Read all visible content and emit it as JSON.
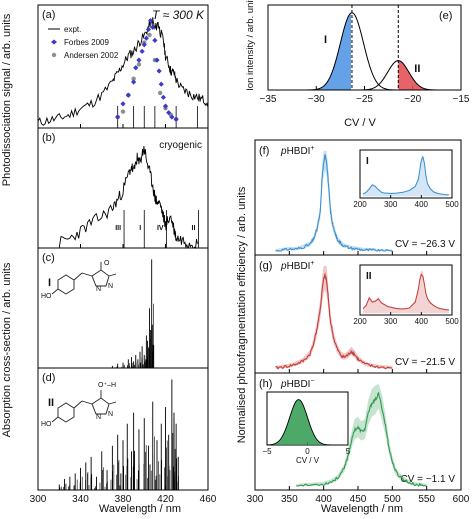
{
  "figure": {
    "left_ylabel_top": "Photodissociation signal / arb. units",
    "left_ylabel_bottom": "Absorption cross-section / arb. units",
    "left_xlabel": "Wavelength / nm",
    "right_ylabel_top": "Ion intensity / arb. units",
    "right_xlabel_top": "CV / V",
    "right_ylabel_bottom": "Normalised photofragmentation efficiency / arb. units",
    "right_xlabel_bottom": "Wavelength / nm"
  },
  "chart_data": [
    {
      "id": "a",
      "type": "line",
      "panel_label": "(a)",
      "temperature": "T ≈ 300 K",
      "xlim": [
        300,
        460
      ],
      "x_ticks": [
        300,
        340,
        380,
        420,
        460
      ],
      "legend": [
        "expt.",
        "Forbes 2009",
        "Andersen 2002"
      ],
      "series": [
        {
          "name": "expt.",
          "color": "#000000",
          "x": [
            300,
            310,
            320,
            330,
            340,
            350,
            360,
            370,
            375,
            380,
            385,
            390,
            395,
            400,
            405,
            408,
            410,
            413,
            415,
            418,
            420,
            423,
            425,
            428,
            430,
            435,
            440,
            445,
            450,
            455,
            460
          ],
          "y": [
            0.05,
            0.07,
            0.09,
            0.12,
            0.18,
            0.22,
            0.3,
            0.42,
            0.5,
            0.58,
            0.66,
            0.7,
            0.78,
            0.84,
            0.95,
            0.98,
            0.9,
            0.96,
            0.88,
            0.8,
            0.66,
            0.58,
            0.52,
            0.5,
            0.44,
            0.36,
            0.33,
            0.3,
            0.28,
            0.26,
            0.24
          ]
        },
        {
          "name": "Forbes 2009",
          "color": "#3a3acc",
          "x": [
            375,
            380,
            385,
            390,
            392,
            395,
            398,
            400,
            402,
            404,
            406,
            408,
            410,
            412,
            414,
            416,
            418,
            420,
            423,
            426,
            430
          ],
          "y": [
            0.1,
            0.22,
            0.3,
            0.42,
            0.55,
            0.62,
            0.7,
            0.76,
            0.82,
            0.9,
            0.98,
            0.92,
            0.8,
            0.62,
            0.52,
            0.4,
            0.28,
            0.2,
            0.14,
            0.1,
            0.08
          ]
        },
        {
          "name": "Andersen 2002",
          "color": "#8e8e8e",
          "x": [
            375,
            380,
            385,
            390,
            395,
            400,
            405,
            410,
            415,
            420,
            425,
            430
          ],
          "y": [
            0.1,
            0.15,
            0.3,
            0.45,
            0.58,
            0.78,
            0.85,
            0.62,
            0.32,
            0.18,
            0.12,
            0.08
          ]
        }
      ],
      "sticks_x": [
        375,
        390,
        400,
        410,
        430,
        450
      ]
    },
    {
      "id": "b",
      "type": "line",
      "panel_label": "(b)",
      "condition": "cryogenic",
      "xlim": [
        300,
        460
      ],
      "series": [
        {
          "name": "",
          "color": "#000000",
          "x": [
            320,
            330,
            340,
            350,
            360,
            370,
            375,
            380,
            385,
            388,
            390,
            393,
            395,
            398,
            400,
            402,
            405,
            408,
            410,
            412,
            415,
            418,
            420,
            422,
            425,
            428,
            430,
            435,
            440,
            445,
            450
          ],
          "y": [
            0.05,
            0.09,
            0.16,
            0.24,
            0.3,
            0.38,
            0.46,
            0.55,
            0.7,
            0.78,
            0.72,
            0.86,
            0.8,
            0.9,
            0.95,
            0.85,
            0.72,
            0.6,
            0.48,
            0.44,
            0.42,
            0.3,
            0.22,
            0.26,
            0.3,
            0.18,
            0.1,
            0.08,
            0.06,
            0.05,
            0.04
          ]
        }
      ],
      "sticks_x": [
        381,
        400,
        421,
        451
      ],
      "band_labels": [
        "III",
        "I",
        "IV",
        "II"
      ]
    },
    {
      "id": "c",
      "type": "bar",
      "panel_label": "(c)",
      "label": "I",
      "xlim": [
        300,
        460
      ],
      "x": [
        370,
        375,
        380,
        385,
        388,
        390,
        392,
        394,
        396,
        398,
        400,
        402,
        403,
        405,
        406,
        407,
        408
      ],
      "values": [
        0.02,
        0.04,
        0.05,
        0.08,
        0.1,
        0.06,
        0.12,
        0.08,
        0.15,
        0.2,
        0.12,
        0.3,
        0.25,
        0.55,
        0.35,
        1.0,
        0.4
      ]
    },
    {
      "id": "d",
      "type": "bar",
      "panel_label": "(d)",
      "label": "II",
      "xlim": [
        300,
        460
      ],
      "x": [
        320,
        325,
        330,
        335,
        340,
        345,
        350,
        355,
        360,
        365,
        370,
        375,
        378,
        380,
        384,
        388,
        390,
        395,
        400,
        404,
        408,
        412,
        416,
        420,
        423,
        426,
        428,
        430,
        432
      ],
      "values": [
        0.05,
        0.1,
        0.12,
        0.15,
        0.2,
        0.25,
        0.3,
        0.12,
        0.35,
        0.18,
        0.4,
        0.5,
        0.15,
        0.45,
        0.6,
        0.35,
        0.7,
        0.55,
        0.65,
        0.4,
        0.8,
        0.45,
        0.6,
        0.75,
        0.5,
        1.0,
        0.7,
        0.6,
        0.3
      ]
    },
    {
      "id": "e",
      "type": "area",
      "panel_label": "(e)",
      "xlabel": "CV / V",
      "ylabel": "Ion intensity / arb. units",
      "xlim": [
        -35,
        -15
      ],
      "x_ticks": [
        -35,
        -30,
        -25,
        -20,
        -15
      ],
      "peaks": [
        {
          "name": "I",
          "center": -26.3,
          "sigma": 1.2,
          "height": 1.0,
          "color": "#4a90e2"
        },
        {
          "name": "II",
          "center": -21.5,
          "sigma": 1.1,
          "height": 0.38,
          "color": "#e0494e"
        }
      ],
      "dashed_lines": [
        -26.3,
        -21.5
      ]
    },
    {
      "id": "f",
      "type": "line",
      "panel_label": "(f)",
      "title": "pHBDI",
      "title_sup": "+",
      "cv_text": "CV = −26.3 V",
      "xlim": [
        300,
        600
      ],
      "color": "#3a8fd0",
      "x": [
        330,
        340,
        350,
        360,
        370,
        380,
        385,
        390,
        395,
        398,
        400,
        402,
        404,
        406,
        408,
        410,
        412,
        415,
        418,
        420,
        425,
        430,
        440,
        450,
        460,
        470,
        480,
        490,
        500
      ],
      "y": [
        0.0,
        0.01,
        0.02,
        0.02,
        0.04,
        0.07,
        0.12,
        0.22,
        0.4,
        0.8,
        0.92,
        1.0,
        0.95,
        0.8,
        0.6,
        0.42,
        0.32,
        0.22,
        0.16,
        0.12,
        0.08,
        0.05,
        0.03,
        0.02,
        0.01,
        0.01,
        0.0,
        0.0,
        0.0
      ],
      "inset": {
        "label": "I",
        "xlim": [
          200,
          500
        ],
        "x_ticks": [
          200,
          300,
          400,
          500
        ],
        "x": [
          210,
          220,
          230,
          240,
          250,
          260,
          270,
          280,
          290,
          300,
          320,
          340,
          360,
          380,
          390,
          400,
          405,
          410,
          415,
          420,
          430,
          440,
          450,
          460,
          470,
          480,
          490
        ],
        "y": [
          0.1,
          0.14,
          0.22,
          0.32,
          0.28,
          0.2,
          0.14,
          0.12,
          0.12,
          0.11,
          0.12,
          0.14,
          0.18,
          0.28,
          0.45,
          0.92,
          1.0,
          0.85,
          0.55,
          0.35,
          0.22,
          0.15,
          0.12,
          0.1,
          0.09,
          0.08,
          0.08
        ]
      }
    },
    {
      "id": "g",
      "type": "line",
      "panel_label": "(g)",
      "title": "pHBDI",
      "title_sup": "+",
      "cv_text": "CV = −21.5 V",
      "xlim": [
        300,
        600
      ],
      "color": "#c43a3a",
      "x": [
        330,
        340,
        350,
        360,
        370,
        380,
        385,
        390,
        395,
        398,
        400,
        402,
        404,
        406,
        408,
        410,
        415,
        420,
        425,
        430,
        435,
        440,
        445,
        450,
        460,
        470,
        480,
        500
      ],
      "y": [
        0.01,
        0.02,
        0.03,
        0.05,
        0.08,
        0.15,
        0.25,
        0.4,
        0.6,
        0.82,
        0.92,
        0.96,
        0.9,
        0.78,
        0.62,
        0.48,
        0.3,
        0.2,
        0.14,
        0.12,
        0.14,
        0.18,
        0.15,
        0.1,
        0.05,
        0.03,
        0.02,
        0.01
      ],
      "inset": {
        "label": "II",
        "xlim": [
          200,
          500
        ],
        "x_ticks": [
          200,
          300,
          400,
          500
        ],
        "x": [
          210,
          220,
          230,
          240,
          250,
          260,
          270,
          280,
          290,
          300,
          320,
          340,
          360,
          380,
          390,
          395,
          400,
          405,
          410,
          415,
          420,
          430,
          440,
          450,
          460,
          470,
          480,
          490
        ],
        "y": [
          0.15,
          0.22,
          0.4,
          0.3,
          0.32,
          0.38,
          0.28,
          0.24,
          0.2,
          0.18,
          0.15,
          0.14,
          0.16,
          0.3,
          0.6,
          0.82,
          0.95,
          0.9,
          0.72,
          0.5,
          0.38,
          0.28,
          0.22,
          0.18,
          0.15,
          0.14,
          0.12,
          0.12
        ]
      }
    },
    {
      "id": "h",
      "type": "line",
      "panel_label": "(h)",
      "title": "pHBDI",
      "title_sup": "−",
      "cv_text": "CV = −1.1 V",
      "xlim": [
        300,
        600
      ],
      "color": "#2e9a4e",
      "x_ticks": [
        300,
        350,
        400,
        450,
        500,
        550,
        600
      ],
      "x": [
        360,
        380,
        400,
        410,
        420,
        430,
        435,
        440,
        445,
        450,
        455,
        460,
        465,
        470,
        475,
        480,
        485,
        490,
        495,
        500,
        505,
        510,
        520,
        530,
        540,
        550
      ],
      "y": [
        0.0,
        0.01,
        0.02,
        0.04,
        0.08,
        0.18,
        0.3,
        0.45,
        0.58,
        0.6,
        0.56,
        0.58,
        0.75,
        0.85,
        0.88,
        0.95,
        0.8,
        0.62,
        0.4,
        0.25,
        0.15,
        0.1,
        0.05,
        0.02,
        0.01,
        0.0
      ],
      "inset": {
        "xlim": [
          -5,
          5
        ],
        "x_ticks": [
          -5,
          0,
          5
        ],
        "xlabel": "CV / V",
        "peak_center": -1.1,
        "peak_sigma": 1.1,
        "color": "#2e9a4e"
      }
    }
  ]
}
